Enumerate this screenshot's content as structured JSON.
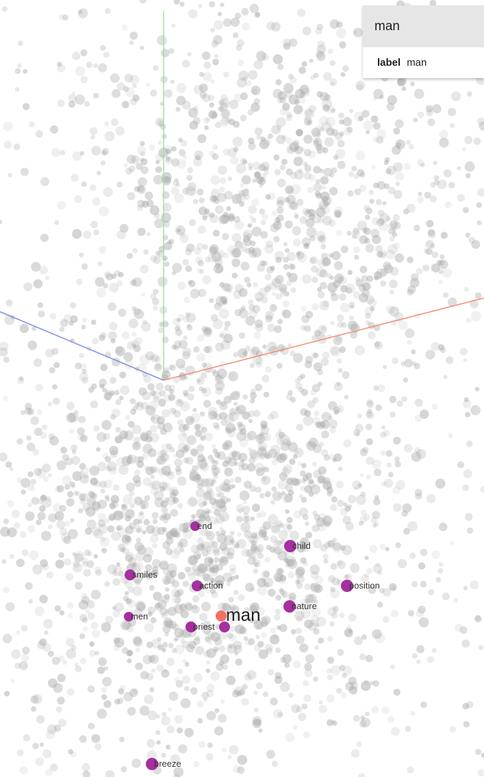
{
  "inspector": {
    "selected_title": "man",
    "field_key": "label",
    "field_value": "man"
  },
  "colors": {
    "background_point": "#aaaaaa",
    "neighbor_point": "#a5309f",
    "selected_point": "#f37065",
    "axis_x": "#f58b72",
    "axis_y": "#9be783",
    "axis_z": "#7f90e8"
  },
  "selected_point": {
    "label": "man"
  },
  "neighbors": [
    {
      "label": "end"
    },
    {
      "label": "child"
    },
    {
      "label": "smiles"
    },
    {
      "label": "action"
    },
    {
      "label": "position"
    },
    {
      "label": "nature"
    },
    {
      "label": "men"
    },
    {
      "label": "priest"
    },
    {
      "label": ""
    },
    {
      "label": "breeze"
    }
  ]
}
